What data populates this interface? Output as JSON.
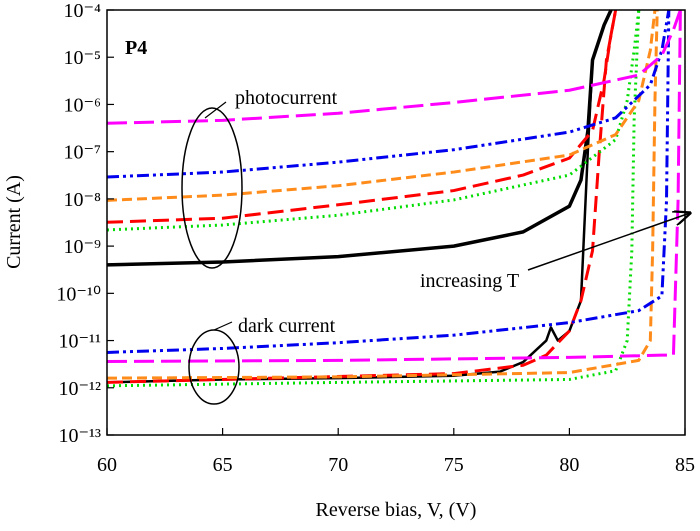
{
  "chart_data": {
    "type": "line",
    "xlabel": "Reverse bias, V, (V)",
    "ylabel": "Current (A)",
    "annotations": [
      "P4",
      "photocurrent",
      "dark current",
      "increasing T"
    ],
    "xlim": [
      60,
      85
    ],
    "xticks": [
      60,
      65,
      70,
      75,
      80,
      85
    ],
    "ylim": [
      1e-13,
      0.0001
    ],
    "log_y": true,
    "yticks": [
      {
        "value": 1e-13,
        "label": "10⁻¹³"
      },
      {
        "value": 1e-12,
        "label": "10⁻¹²"
      },
      {
        "value": 1e-11,
        "label": "10⁻¹¹"
      },
      {
        "value": 1e-10,
        "label": "10⁻¹⁰"
      },
      {
        "value": 1e-09,
        "label": "10⁻⁹"
      },
      {
        "value": 1e-08,
        "label": "10⁻⁸"
      },
      {
        "value": 1e-07,
        "label": "10⁻⁷"
      },
      {
        "value": 1e-06,
        "label": "10⁻⁶"
      },
      {
        "value": 1e-05,
        "label": "10⁻⁵"
      },
      {
        "value": 0.0001,
        "label": "10⁻⁴"
      }
    ],
    "series": [
      {
        "color": "#000000",
        "dash": "none",
        "width": 3.5,
        "x": [
          60,
          65,
          70,
          75,
          78,
          80,
          80.5,
          80.8,
          81,
          81.5,
          81.8
        ],
        "values": [
          4e-10,
          4.6e-10,
          6e-10,
          1e-09,
          2e-09,
          7e-09,
          2.5e-08,
          2.8e-07,
          8.7e-06,
          4.8e-05,
          0.0001
        ]
      },
      {
        "color": "#000000",
        "dash": "none",
        "width": 2.5,
        "x": [
          60,
          65,
          70,
          75,
          77,
          78,
          79,
          79.2,
          79.5,
          80,
          80.5,
          80.8,
          81
        ],
        "values": [
          1.3e-12,
          1.5e-12,
          1.6e-12,
          1.8e-12,
          2.2e-12,
          3.5e-12,
          1e-11,
          1.9e-11,
          1e-11,
          1.6e-11,
          7e-11,
          1.1e-07,
          8.7e-06
        ]
      },
      {
        "color": "#ff0000",
        "dash": "16,7",
        "width": 3,
        "x": [
          60,
          65,
          70,
          75,
          78,
          80,
          81,
          81.5,
          81.8,
          82
        ],
        "values": [
          3.2e-09,
          3.9e-09,
          7.5e-09,
          1.5e-08,
          3.2e-08,
          7.3e-08,
          2.8e-07,
          3.3e-06,
          3e-05,
          0.0001
        ]
      },
      {
        "color": "#ff0000",
        "dash": "16,7",
        "width": 3,
        "x": [
          60,
          75,
          78,
          79,
          80,
          80.5,
          81,
          81.3,
          81.6,
          82
        ],
        "values": [
          1.3e-12,
          2e-12,
          3e-12,
          4.9e-12,
          1.6e-11,
          7e-11,
          8e-10,
          1.1e-07,
          8.7e-06,
          0.0001
        ]
      },
      {
        "color": "#00dd00",
        "dash": "2,4",
        "width": 3,
        "x": [
          60,
          65,
          70,
          75,
          80,
          82,
          82.5,
          82.8,
          83
        ],
        "values": [
          2.2e-09,
          2.8e-09,
          4.5e-09,
          9.5e-09,
          3.2e-08,
          1.8e-07,
          1.2e-06,
          1.4e-05,
          0.0001
        ]
      },
      {
        "color": "#00dd00",
        "dash": "2,4",
        "width": 3,
        "x": [
          60,
          70,
          80,
          82,
          82.5,
          82.7,
          82.8,
          83
        ],
        "values": [
          1.1e-12,
          1.3e-12,
          1.5e-12,
          2.3e-12,
          1e-11,
          8e-10,
          4.7e-07,
          0.0001
        ]
      },
      {
        "color": "#ff8c1a",
        "dash": "10,5",
        "width": 3,
        "x": [
          60,
          65,
          70,
          75,
          80,
          82,
          83,
          83.5,
          83.7
        ],
        "values": [
          9.3e-09,
          1.2e-08,
          1.9e-08,
          3.7e-08,
          8.5e-08,
          2.3e-07,
          1.2e-06,
          1.4e-05,
          0.0001
        ]
      },
      {
        "color": "#ff8c1a",
        "dash": "10,5",
        "width": 3,
        "x": [
          60,
          70,
          80,
          83,
          83.5,
          83.6,
          83.7,
          83.8
        ],
        "values": [
          1.6e-12,
          1.7e-12,
          2.1e-12,
          3.8e-12,
          1e-11,
          8e-10,
          1.2e-06,
          0.0001
        ]
      },
      {
        "color": "#0000ee",
        "dash": "12,4,3,4,3,4",
        "width": 3,
        "x": [
          60,
          65,
          70,
          75,
          80,
          82,
          83.5,
          84,
          84.3
        ],
        "values": [
          2.9e-08,
          3.7e-08,
          6e-08,
          1.1e-07,
          2.6e-07,
          5.2e-07,
          2.6e-06,
          1.4e-05,
          0.0001
        ]
      },
      {
        "color": "#0000ee",
        "dash": "12,4,3,4,3,4",
        "width": 3,
        "x": [
          60,
          65,
          70,
          75,
          80,
          83,
          84,
          84.2,
          84.3
        ],
        "values": [
          5.6e-12,
          6.8e-12,
          9e-12,
          1.3e-11,
          2.4e-11,
          4.3e-11,
          8.8e-11,
          9e-09,
          0.0001
        ]
      },
      {
        "color": "#ff00ff",
        "dash": "20,7",
        "width": 3,
        "x": [
          60,
          65,
          70,
          75,
          80,
          83,
          84,
          84.5,
          84.8
        ],
        "values": [
          4e-07,
          4.6e-07,
          6.5e-07,
          1.1e-06,
          2e-06,
          4.2e-06,
          1.1e-05,
          3.8e-05,
          0.0001
        ]
      },
      {
        "color": "#ff00ff",
        "dash": "20,7",
        "width": 3,
        "x": [
          60,
          70,
          80,
          84,
          84.5,
          84.7,
          84.8
        ],
        "values": [
          3.6e-12,
          3.8e-12,
          4.4e-12,
          4.9e-12,
          4.9e-12,
          9e-09,
          0.0001
        ]
      }
    ]
  }
}
